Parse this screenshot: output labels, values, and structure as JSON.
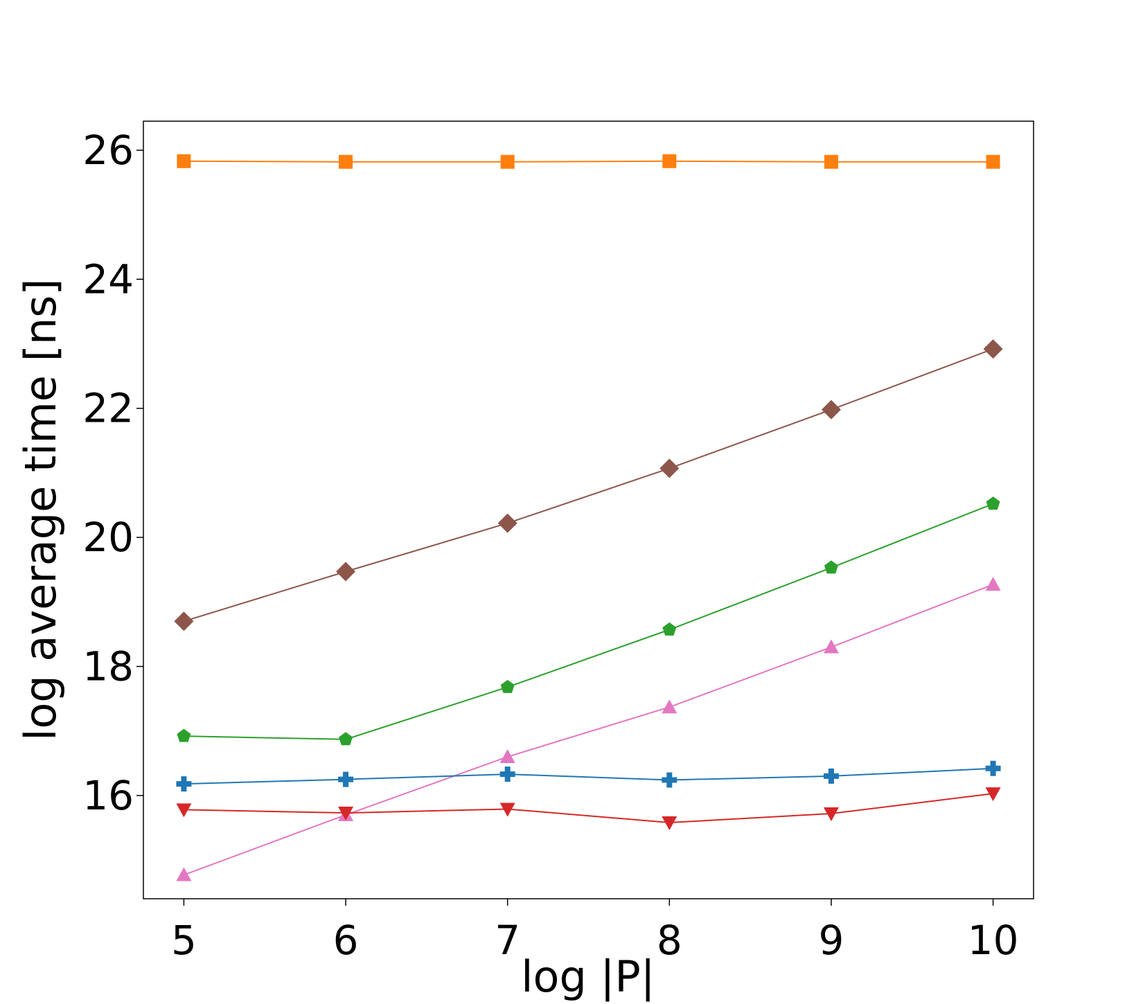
{
  "chart_data": {
    "type": "line",
    "title": "",
    "xlabel": "log |P|",
    "ylabel": "log average time [ns]",
    "x": [
      5,
      6,
      7,
      8,
      9,
      10
    ],
    "xlim": [
      4.75,
      10.25
    ],
    "ylim": [
      14.4,
      26.45
    ],
    "xticks": [
      5,
      6,
      7,
      8,
      9,
      10
    ],
    "yticks": [
      16,
      18,
      20,
      22,
      24,
      26
    ],
    "grid": false,
    "legend": "none",
    "series": [
      {
        "color": "#ff7f0e",
        "marker": "square",
        "values": [
          25.83,
          25.82,
          25.82,
          25.83,
          25.82,
          25.82
        ]
      },
      {
        "color": "#8c564b",
        "marker": "diamond",
        "values": [
          18.7,
          19.47,
          20.22,
          21.07,
          21.98,
          22.92
        ]
      },
      {
        "color": "#2ca02c",
        "marker": "pentagon",
        "values": [
          16.92,
          16.87,
          17.68,
          18.57,
          19.53,
          20.52
        ]
      },
      {
        "color": "#e377c2",
        "marker": "triangle-up",
        "values": [
          14.77,
          15.7,
          16.6,
          17.37,
          18.3,
          19.27
        ]
      },
      {
        "color": "#1f77b4",
        "marker": "plus",
        "values": [
          16.18,
          16.25,
          16.33,
          16.24,
          16.3,
          16.42
        ]
      },
      {
        "color": "#d62728",
        "marker": "triangle-down",
        "values": [
          15.78,
          15.73,
          15.79,
          15.58,
          15.72,
          16.03
        ]
      }
    ]
  }
}
